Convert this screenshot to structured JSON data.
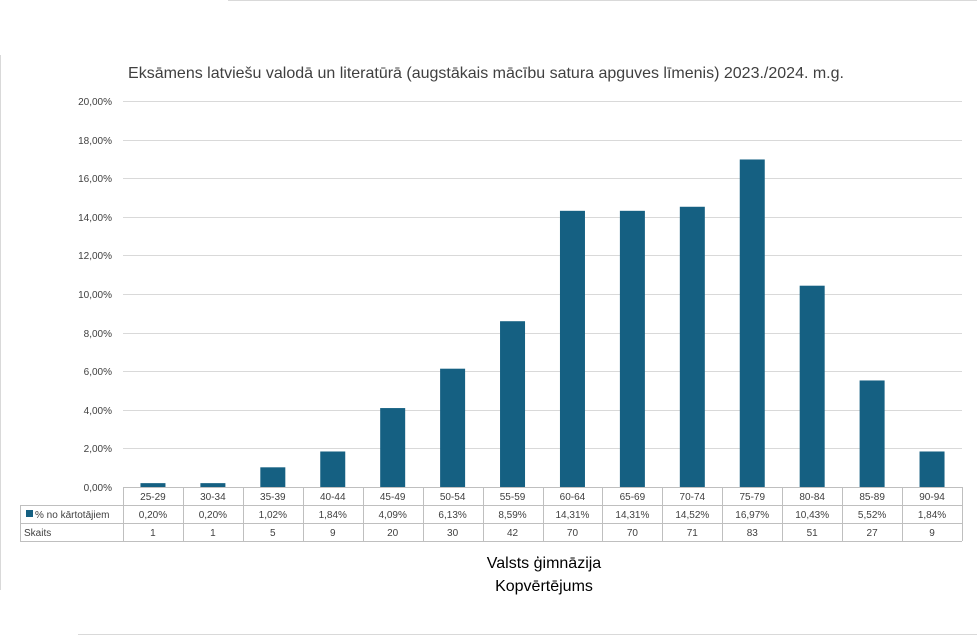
{
  "chart_data": {
    "type": "bar",
    "title": "Eksāmens latviešu valodā un literatūrā (augstākais mācību satura apguves līmenis) 2023./2024. m.g.",
    "categories": [
      "25-29",
      "30-34",
      "35-39",
      "40-44",
      "45-49",
      "50-54",
      "55-59",
      "60-64",
      "65-69",
      "70-74",
      "75-79",
      "80-84",
      "85-89",
      "90-94"
    ],
    "series": [
      {
        "name": "% no kārtotājiem",
        "values": [
          0.2,
          0.2,
          1.02,
          1.84,
          4.09,
          6.13,
          8.59,
          14.31,
          14.31,
          14.52,
          16.97,
          10.43,
          5.52,
          1.84
        ],
        "labels": [
          "0,20%",
          "0,20%",
          "1,02%",
          "1,84%",
          "4,09%",
          "6,13%",
          "8,59%",
          "14,31%",
          "14,31%",
          "14,52%",
          "16,97%",
          "10,43%",
          "5,52%",
          "1,84%"
        ],
        "color": "#156082"
      }
    ],
    "table_rows": [
      {
        "label": "Skaits",
        "values": [
          "1",
          "1",
          "5",
          "9",
          "20",
          "30",
          "42",
          "70",
          "70",
          "71",
          "83",
          "51",
          "27",
          "9"
        ]
      }
    ],
    "yaxis": {
      "min": 0,
      "max": 20,
      "unit": "%",
      "ticks": [
        "0,00%",
        "2,00%",
        "4,00%",
        "6,00%",
        "8,00%",
        "10,00%",
        "12,00%",
        "14,00%",
        "16,00%",
        "18,00%",
        "20,00%"
      ]
    },
    "xlabel_lines": [
      "Valsts ģimnāzija",
      "Kopvērtējums"
    ],
    "grid": true,
    "legend_placement": "data-table"
  }
}
